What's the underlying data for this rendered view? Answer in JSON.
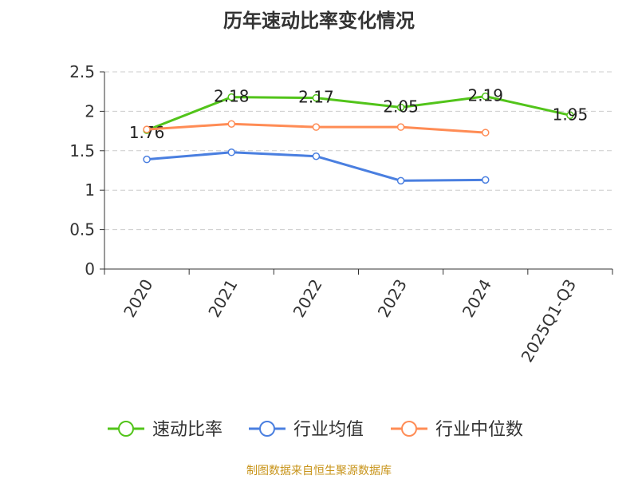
{
  "chart_data": {
    "type": "line",
    "title": "历年速动比率变化情况",
    "categories": [
      "2020",
      "2021",
      "2022",
      "2023",
      "2024",
      "2025Q1-Q3"
    ],
    "yticks": [
      "0",
      "0.5",
      "1",
      "1.5",
      "2",
      "2.5"
    ],
    "ylim": [
      0,
      2.5
    ],
    "grid": true,
    "legend_placement": "bottom",
    "series": [
      {
        "name": "速动比率",
        "color": "#52c41a",
        "values": [
          1.76,
          2.18,
          2.17,
          2.05,
          2.19,
          1.95
        ],
        "labels": [
          "1.76",
          "2.18",
          "2.17",
          "2.05",
          "2.19",
          "1.95"
        ]
      },
      {
        "name": "行业均值",
        "color": "#4a7fe0",
        "values": [
          1.39,
          1.48,
          1.43,
          1.12,
          1.13,
          null
        ]
      },
      {
        "name": "行业中位数",
        "color": "#ff8c55",
        "values": [
          1.77,
          1.84,
          1.8,
          1.8,
          1.73,
          null
        ]
      }
    ]
  },
  "source": "制图数据来自恒生聚源数据库"
}
